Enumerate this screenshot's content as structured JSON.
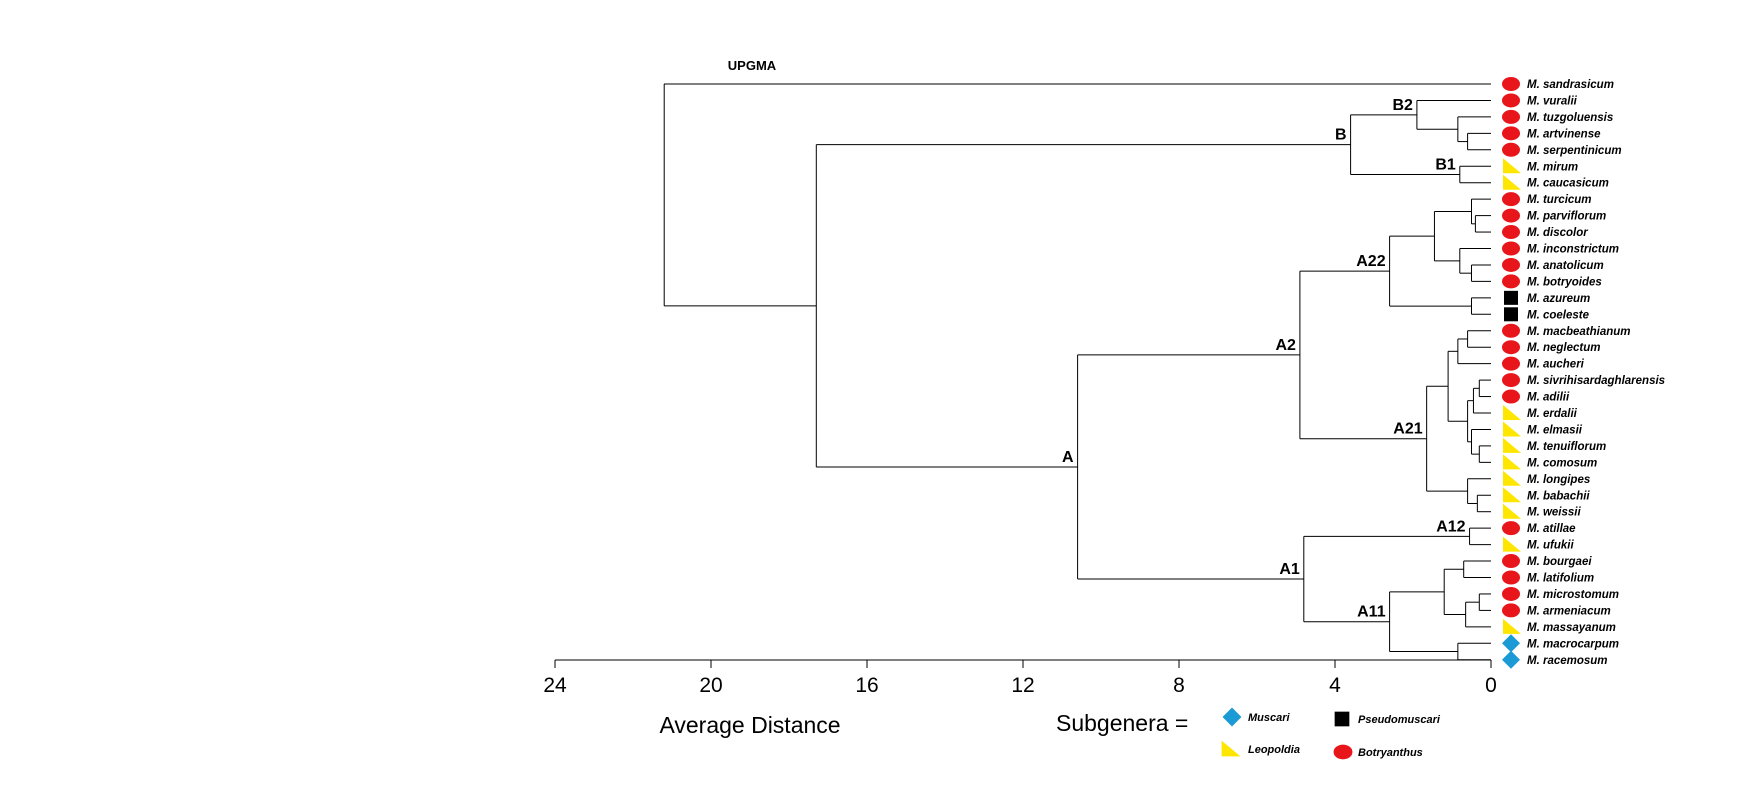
{
  "title": "UPGMA",
  "axis": {
    "label": "Average Distance",
    "ticks": [
      "24",
      "20",
      "16",
      "12",
      "8",
      "4",
      "0"
    ]
  },
  "legend": {
    "title": "Subgenera =",
    "items": [
      {
        "name": "Muscari",
        "shape": "diamond",
        "color": "#1b9ad6"
      },
      {
        "name": "Pseudomuscari",
        "shape": "square",
        "color": "#000000"
      },
      {
        "name": "Leopoldia",
        "shape": "triangle",
        "color": "#ffe600"
      },
      {
        "name": "Botryanthus",
        "shape": "ellipse",
        "color": "#e8161b"
      }
    ]
  },
  "taxa": [
    {
      "name": "M. sandrasicum",
      "subgenus": "Botryanthus"
    },
    {
      "name": "M. vuralii",
      "subgenus": "Botryanthus"
    },
    {
      "name": "M. tuzgoluensis",
      "subgenus": "Botryanthus"
    },
    {
      "name": "M. artvinense",
      "subgenus": "Botryanthus"
    },
    {
      "name": "M. serpentinicum",
      "subgenus": "Botryanthus"
    },
    {
      "name": "M. mirum",
      "subgenus": "Leopoldia"
    },
    {
      "name": "M. caucasicum",
      "subgenus": "Leopoldia"
    },
    {
      "name": "M. turcicum",
      "subgenus": "Botryanthus"
    },
    {
      "name": "M. parviflorum",
      "subgenus": "Botryanthus"
    },
    {
      "name": "M. discolor",
      "subgenus": "Botryanthus"
    },
    {
      "name": "M. inconstrictum",
      "subgenus": "Botryanthus"
    },
    {
      "name": "M. anatolicum",
      "subgenus": "Botryanthus"
    },
    {
      "name": "M. botryoides",
      "subgenus": "Botryanthus"
    },
    {
      "name": "M. azureum",
      "subgenus": "Pseudomuscari"
    },
    {
      "name": "M. coeleste",
      "subgenus": "Pseudomuscari"
    },
    {
      "name": "M. macbeathianum",
      "subgenus": "Botryanthus"
    },
    {
      "name": "M. neglectum",
      "subgenus": "Botryanthus"
    },
    {
      "name": "M. aucheri",
      "subgenus": "Botryanthus"
    },
    {
      "name": "M. sivrihisardaghlarensis",
      "subgenus": "Botryanthus"
    },
    {
      "name": "M. adilii",
      "subgenus": "Botryanthus"
    },
    {
      "name": "M. erdalii",
      "subgenus": "Leopoldia"
    },
    {
      "name": "M. elmasii",
      "subgenus": "Leopoldia"
    },
    {
      "name": "M. tenuiflorum",
      "subgenus": "Leopoldia"
    },
    {
      "name": "M. comosum",
      "subgenus": "Leopoldia"
    },
    {
      "name": "M. longipes",
      "subgenus": "Leopoldia"
    },
    {
      "name": "M. babachii",
      "subgenus": "Leopoldia"
    },
    {
      "name": "M. weissii",
      "subgenus": "Leopoldia"
    },
    {
      "name": "M. atillae",
      "subgenus": "Botryanthus"
    },
    {
      "name": "M. ufukii",
      "subgenus": "Leopoldia"
    },
    {
      "name": "M. bourgaei",
      "subgenus": "Botryanthus"
    },
    {
      "name": "M. latifolium",
      "subgenus": "Botryanthus"
    },
    {
      "name": "M. microstomum",
      "subgenus": "Botryanthus"
    },
    {
      "name": "M. armeniacum",
      "subgenus": "Botryanthus"
    },
    {
      "name": "M. massayanum",
      "subgenus": "Leopoldia"
    },
    {
      "name": "M. macrocarpum",
      "subgenus": "Muscari"
    },
    {
      "name": "M. racemosum",
      "subgenus": "Muscari"
    }
  ],
  "tree": {
    "h": 21.2,
    "children": [
      {
        "leaf": 0
      },
      {
        "h": 17.3,
        "children": [
          {
            "h": 3.6,
            "label": "B",
            "children": [
              {
                "h": 1.9,
                "label": "B2",
                "children": [
                  {
                    "leaf": 1
                  },
                  {
                    "h": 0.85,
                    "children": [
                      {
                        "leaf": 2
                      },
                      {
                        "h": 0.6,
                        "children": [
                          {
                            "leaf": 3
                          },
                          {
                            "leaf": 4
                          }
                        ]
                      }
                    ]
                  }
                ]
              },
              {
                "h": 0.8,
                "label": "B1",
                "children": [
                  {
                    "leaf": 5
                  },
                  {
                    "leaf": 6
                  }
                ]
              }
            ]
          },
          {
            "h": 10.6,
            "label": "A",
            "children": [
              {
                "h": 4.9,
                "label": "A2",
                "children": [
                  {
                    "h": 2.6,
                    "label": "A22",
                    "children": [
                      {
                        "h": 1.45,
                        "children": [
                          {
                            "h": 0.5,
                            "children": [
                              {
                                "leaf": 7
                              },
                              {
                                "h": 0.4,
                                "children": [
                                  {
                                    "leaf": 8
                                  },
                                  {
                                    "leaf": 9
                                  }
                                ]
                              }
                            ]
                          },
                          {
                            "h": 0.8,
                            "children": [
                              {
                                "leaf": 10
                              },
                              {
                                "h": 0.5,
                                "children": [
                                  {
                                    "leaf": 11
                                  },
                                  {
                                    "leaf": 12
                                  }
                                ]
                              }
                            ]
                          }
                        ]
                      },
                      {
                        "h": 0.5,
                        "children": [
                          {
                            "leaf": 13
                          },
                          {
                            "leaf": 14
                          }
                        ]
                      }
                    ]
                  },
                  {
                    "h": 1.65,
                    "label": "A21",
                    "children": [
                      {
                        "h": 1.1,
                        "children": [
                          {
                            "h": 0.85,
                            "children": [
                              {
                                "h": 0.6,
                                "children": [
                                  {
                                    "leaf": 15
                                  },
                                  {
                                    "leaf": 16
                                  }
                                ]
                              },
                              {
                                "leaf": 17
                              }
                            ]
                          },
                          {
                            "h": 0.6,
                            "children": [
                              {
                                "h": 0.45,
                                "children": [
                                  {
                                    "h": 0.3,
                                    "children": [
                                      {
                                        "leaf": 18
                                      },
                                      {
                                        "leaf": 19
                                      }
                                    ]
                                  },
                                  {
                                    "leaf": 20
                                  }
                                ]
                              },
                              {
                                "h": 0.5,
                                "children": [
                                  {
                                    "leaf": 21
                                  },
                                  {
                                    "h": 0.3,
                                    "children": [
                                      {
                                        "leaf": 22
                                      },
                                      {
                                        "leaf": 23
                                      }
                                    ]
                                  }
                                ]
                              }
                            ]
                          }
                        ]
                      },
                      {
                        "h": 0.6,
                        "children": [
                          {
                            "leaf": 24
                          },
                          {
                            "h": 0.35,
                            "children": [
                              {
                                "leaf": 25
                              },
                              {
                                "leaf": 26
                              }
                            ]
                          }
                        ]
                      }
                    ]
                  }
                ]
              },
              {
                "h": 4.8,
                "label": "A1",
                "children": [
                  {
                    "h": 0.55,
                    "label": "A12",
                    "children": [
                      {
                        "leaf": 27
                      },
                      {
                        "leaf": 28
                      }
                    ]
                  },
                  {
                    "h": 2.6,
                    "label": "A11",
                    "children": [
                      {
                        "h": 1.2,
                        "children": [
                          {
                            "h": 0.7,
                            "children": [
                              {
                                "leaf": 29
                              },
                              {
                                "leaf": 30
                              }
                            ]
                          },
                          {
                            "h": 0.65,
                            "children": [
                              {
                                "h": 0.3,
                                "children": [
                                  {
                                    "leaf": 31
                                  },
                                  {
                                    "leaf": 32
                                  }
                                ]
                              },
                              {
                                "leaf": 33
                              }
                            ]
                          }
                        ]
                      },
                      {
                        "h": 0.85,
                        "children": [
                          {
                            "leaf": 34
                          },
                          {
                            "leaf": 35
                          }
                        ]
                      }
                    ]
                  }
                ]
              }
            ]
          }
        ]
      }
    ]
  }
}
